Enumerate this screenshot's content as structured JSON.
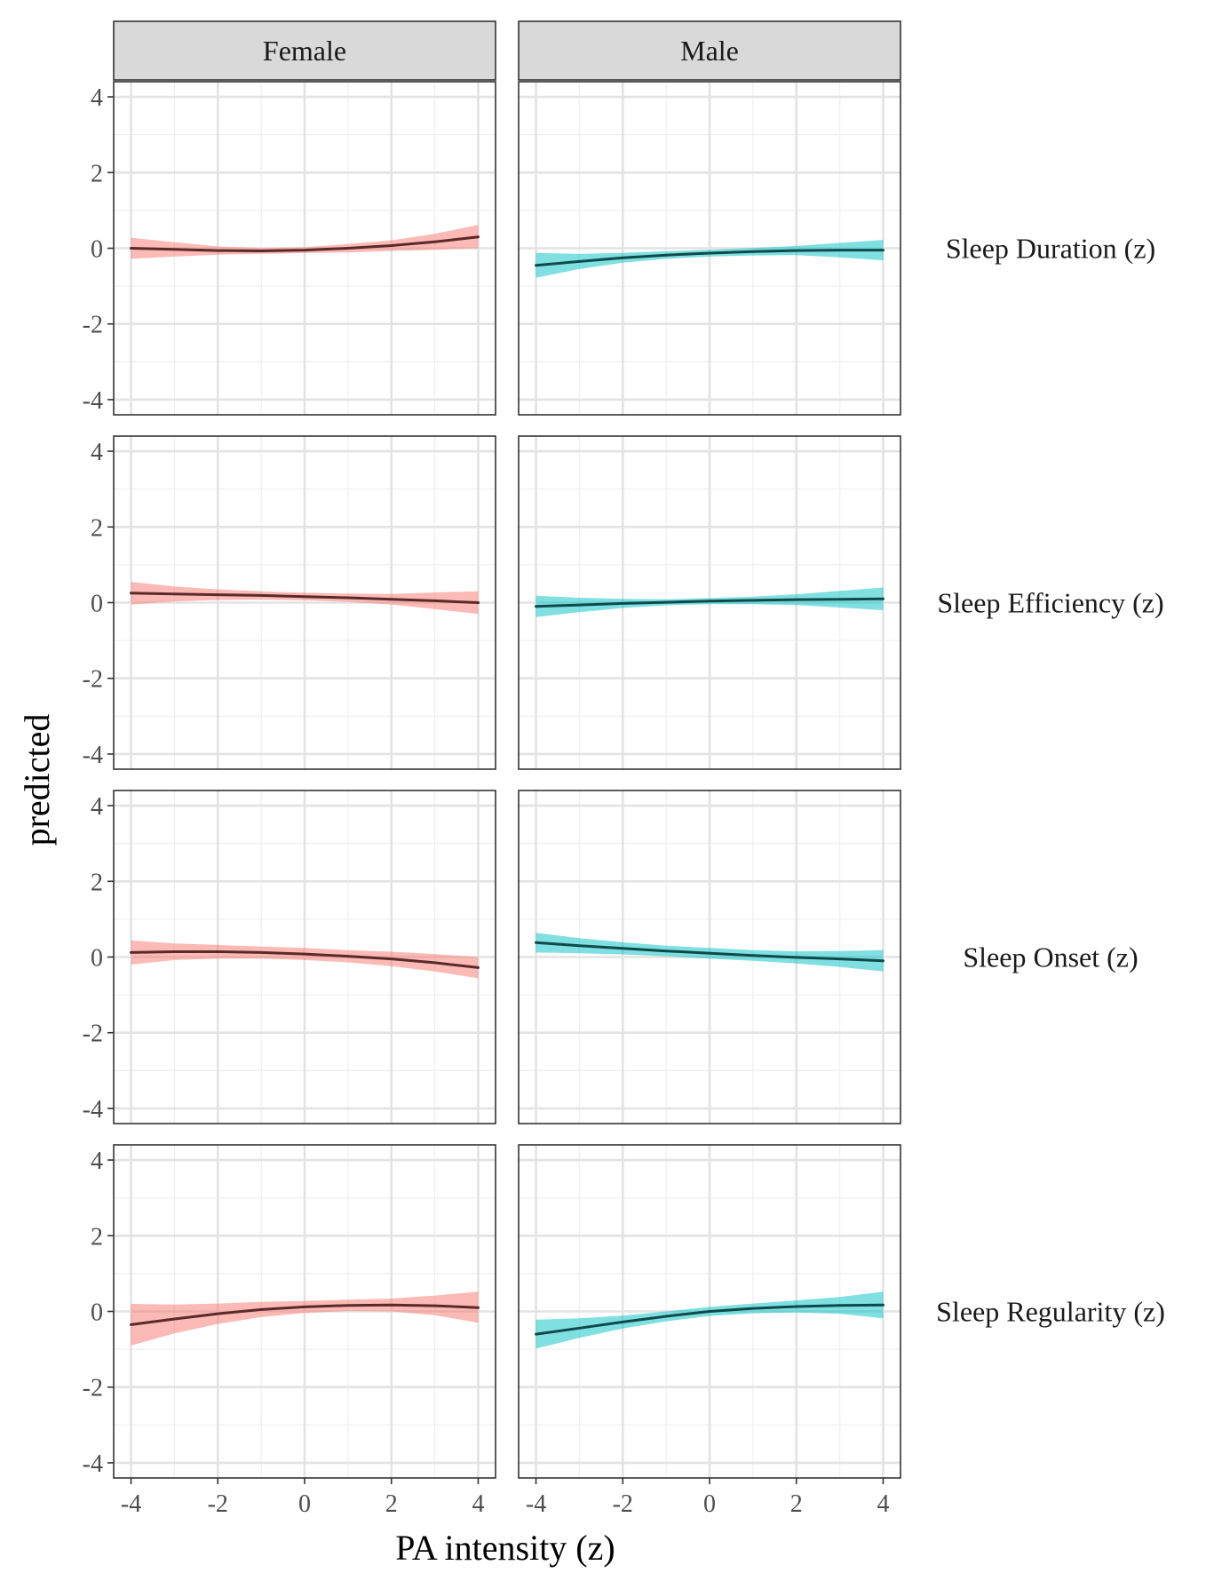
{
  "chart_data": {
    "type": "line",
    "xlabel": "PA intensity (z)",
    "ylabel": "predicted",
    "xlim": [
      -4.4,
      4.4
    ],
    "ylim": [
      -4.4,
      4.4
    ],
    "x_ticks": [
      -4,
      -2,
      0,
      2,
      4
    ],
    "y_ticks": [
      -4,
      -2,
      0,
      2,
      4
    ],
    "x_tick_labels": [
      "-4",
      "-2",
      "0",
      "2",
      "4"
    ],
    "y_tick_labels": [
      "-4",
      "-2",
      "0",
      "2",
      "4"
    ],
    "grid": true,
    "legend": "none",
    "columns": [
      {
        "label": "Female",
        "line_color": "#5a2a28",
        "band_color": "#f8766d"
      },
      {
        "label": "Male",
        "line_color": "#0f4a4a",
        "band_color": "#00bfc4"
      }
    ],
    "rows": [
      "Sleep Duration (z)",
      "Sleep Efficiency (z)",
      "Sleep Onset (z)",
      "Sleep Regularity (z)"
    ],
    "x": [
      -4,
      -3,
      -2,
      -1,
      0,
      1,
      2,
      3,
      4
    ],
    "panels": [
      {
        "row": "Sleep Duration (z)",
        "column": "Female",
        "y": [
          0.0,
          -0.03,
          -0.06,
          -0.07,
          -0.05,
          0.0,
          0.07,
          0.17,
          0.3
        ],
        "lower": [
          -0.28,
          -0.22,
          -0.17,
          -0.15,
          -0.13,
          -0.11,
          -0.07,
          -0.04,
          0.0
        ],
        "upper": [
          0.28,
          0.16,
          0.05,
          0.01,
          0.03,
          0.11,
          0.21,
          0.38,
          0.62
        ]
      },
      {
        "row": "Sleep Duration (z)",
        "column": "Male",
        "y": [
          -0.45,
          -0.35,
          -0.25,
          -0.18,
          -0.13,
          -0.09,
          -0.06,
          -0.05,
          -0.05
        ],
        "lower": [
          -0.78,
          -0.55,
          -0.38,
          -0.28,
          -0.22,
          -0.19,
          -0.18,
          -0.24,
          -0.32
        ],
        "upper": [
          -0.12,
          -0.15,
          -0.12,
          -0.08,
          -0.04,
          0.01,
          0.06,
          0.14,
          0.22
        ]
      },
      {
        "row": "Sleep Efficiency (z)",
        "column": "Female",
        "y": [
          0.25,
          0.23,
          0.21,
          0.19,
          0.16,
          0.13,
          0.09,
          0.05,
          0.0
        ],
        "lower": [
          -0.05,
          0.03,
          0.07,
          0.08,
          0.06,
          0.02,
          -0.05,
          -0.17,
          -0.3
        ],
        "upper": [
          0.55,
          0.43,
          0.35,
          0.3,
          0.26,
          0.24,
          0.23,
          0.27,
          0.3
        ]
      },
      {
        "row": "Sleep Efficiency (z)",
        "column": "Male",
        "y": [
          -0.1,
          -0.06,
          -0.02,
          0.01,
          0.04,
          0.06,
          0.08,
          0.09,
          0.1
        ],
        "lower": [
          -0.38,
          -0.25,
          -0.14,
          -0.07,
          -0.04,
          -0.04,
          -0.06,
          -0.13,
          -0.2
        ],
        "upper": [
          0.18,
          0.13,
          0.1,
          0.09,
          0.12,
          0.16,
          0.22,
          0.31,
          0.4
        ]
      },
      {
        "row": "Sleep Onset (z)",
        "column": "Female",
        "y": [
          0.12,
          0.14,
          0.14,
          0.12,
          0.08,
          0.02,
          -0.05,
          -0.15,
          -0.28
        ],
        "lower": [
          -0.2,
          -0.08,
          -0.04,
          -0.04,
          -0.08,
          -0.14,
          -0.24,
          -0.38,
          -0.56
        ],
        "upper": [
          0.44,
          0.36,
          0.32,
          0.28,
          0.24,
          0.18,
          0.14,
          0.08,
          0.0
        ]
      },
      {
        "row": "Sleep Onset (z)",
        "column": "Male",
        "y": [
          0.38,
          0.3,
          0.23,
          0.16,
          0.1,
          0.04,
          -0.01,
          -0.05,
          -0.1
        ],
        "lower": [
          0.12,
          0.1,
          0.07,
          0.02,
          -0.04,
          -0.1,
          -0.17,
          -0.26,
          -0.38
        ],
        "upper": [
          0.64,
          0.5,
          0.39,
          0.3,
          0.24,
          0.18,
          0.15,
          0.16,
          0.18
        ]
      },
      {
        "row": "Sleep Regularity (z)",
        "column": "Female",
        "y": [
          -0.35,
          -0.2,
          -0.06,
          0.05,
          0.12,
          0.16,
          0.17,
          0.15,
          0.1
        ],
        "lower": [
          -0.9,
          -0.58,
          -0.33,
          -0.15,
          -0.04,
          0.01,
          0.0,
          -0.1,
          -0.3
        ],
        "upper": [
          0.2,
          0.18,
          0.21,
          0.25,
          0.28,
          0.31,
          0.34,
          0.42,
          0.52
        ]
      },
      {
        "row": "Sleep Regularity (z)",
        "column": "Male",
        "y": [
          -0.6,
          -0.44,
          -0.28,
          -0.13,
          0.0,
          0.08,
          0.13,
          0.16,
          0.17
        ],
        "lower": [
          -0.98,
          -0.7,
          -0.45,
          -0.26,
          -0.12,
          -0.05,
          -0.03,
          -0.06,
          -0.18
        ],
        "upper": [
          -0.22,
          -0.18,
          -0.11,
          0.0,
          0.12,
          0.21,
          0.29,
          0.38,
          0.52
        ]
      }
    ]
  }
}
